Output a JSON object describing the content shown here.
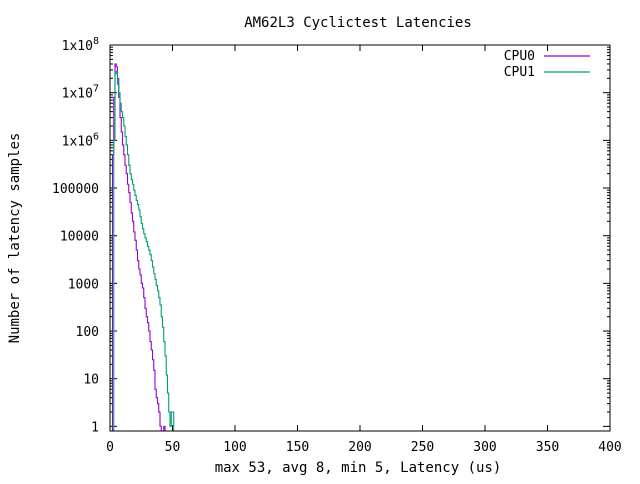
{
  "chart_data": {
    "type": "line",
    "title": "AM62L3 Cyclictest Latencies",
    "xlabel": "max 53, avg 8, min 5, Latency (us)",
    "ylabel": "Number of latency samples",
    "xlim": [
      0,
      400
    ],
    "ylim": [
      0.8,
      100000000
    ],
    "y_scale": "log",
    "grid": false,
    "legend_position": "top-right",
    "x_ticks": [
      "0",
      "50",
      "100",
      "150",
      "200",
      "250",
      "300",
      "350",
      "400"
    ],
    "y_ticks": [
      {
        "value": 1,
        "label": "1"
      },
      {
        "value": 10,
        "label": "10"
      },
      {
        "value": 100,
        "label": "100"
      },
      {
        "value": 1000,
        "label": "1000"
      },
      {
        "value": 10000,
        "label": "10000"
      },
      {
        "value": 100000,
        "label": "100000"
      },
      {
        "value": 1000000,
        "base": "1x10",
        "exp": "6"
      },
      {
        "value": 10000000,
        "base": "1x10",
        "exp": "7"
      },
      {
        "value": 100000000,
        "base": "1x10",
        "exp": "8"
      }
    ],
    "series": [
      {
        "name": "CPU0",
        "color": "#9400d3",
        "points": [
          [
            0,
            0.8
          ],
          [
            1,
            0.8
          ],
          [
            2,
            500000
          ],
          [
            3,
            8000000
          ],
          [
            4,
            40000000
          ],
          [
            5,
            35000000
          ],
          [
            6,
            20000000
          ],
          [
            7,
            8000000
          ],
          [
            8,
            3000000
          ],
          [
            9,
            1500000
          ],
          [
            10,
            800000
          ],
          [
            11,
            500000
          ],
          [
            12,
            300000
          ],
          [
            13,
            200000
          ],
          [
            14,
            120000
          ],
          [
            15,
            80000
          ],
          [
            16,
            50000
          ],
          [
            17,
            30000
          ],
          [
            18,
            20000
          ],
          [
            19,
            12000
          ],
          [
            20,
            8000
          ],
          [
            21,
            5000
          ],
          [
            22,
            3000
          ],
          [
            23,
            2000
          ],
          [
            24,
            1500
          ],
          [
            25,
            1000
          ],
          [
            26,
            800
          ],
          [
            27,
            500
          ],
          [
            28,
            300
          ],
          [
            29,
            200
          ],
          [
            30,
            150
          ],
          [
            31,
            100
          ],
          [
            32,
            60
          ],
          [
            33,
            40
          ],
          [
            34,
            25
          ],
          [
            35,
            15
          ],
          [
            36,
            6
          ],
          [
            37,
            4
          ],
          [
            38,
            3
          ],
          [
            39,
            2
          ],
          [
            40,
            1
          ],
          [
            41,
            0.8
          ],
          [
            42,
            0.8
          ],
          [
            43,
            1
          ],
          [
            44,
            0.8
          ],
          [
            53,
            0.8
          ]
        ]
      },
      {
        "name": "CPU1",
        "color": "#009e73",
        "points": [
          [
            0,
            0.8
          ],
          [
            2,
            0.8
          ],
          [
            3,
            1000000
          ],
          [
            4,
            25000000
          ],
          [
            5,
            28000000
          ],
          [
            6,
            15000000
          ],
          [
            7,
            10000000
          ],
          [
            8,
            6000000
          ],
          [
            9,
            4000000
          ],
          [
            10,
            3000000
          ],
          [
            11,
            2000000
          ],
          [
            12,
            1200000
          ],
          [
            13,
            800000
          ],
          [
            14,
            500000
          ],
          [
            15,
            300000
          ],
          [
            16,
            200000
          ],
          [
            17,
            150000
          ],
          [
            18,
            120000
          ],
          [
            19,
            90000
          ],
          [
            20,
            70000
          ],
          [
            21,
            55000
          ],
          [
            22,
            45000
          ],
          [
            23,
            35000
          ],
          [
            24,
            25000
          ],
          [
            25,
            18000
          ],
          [
            26,
            14000
          ],
          [
            27,
            11000
          ],
          [
            28,
            9000
          ],
          [
            29,
            7500
          ],
          [
            30,
            6000
          ],
          [
            31,
            5000
          ],
          [
            32,
            4000
          ],
          [
            33,
            3000
          ],
          [
            34,
            2200
          ],
          [
            35,
            1600
          ],
          [
            36,
            1200
          ],
          [
            37,
            900
          ],
          [
            38,
            700
          ],
          [
            39,
            500
          ],
          [
            40,
            350
          ],
          [
            41,
            200
          ],
          [
            42,
            120
          ],
          [
            43,
            60
          ],
          [
            44,
            30
          ],
          [
            45,
            12
          ],
          [
            46,
            5
          ],
          [
            47,
            2
          ],
          [
            48,
            1
          ],
          [
            49,
            2
          ],
          [
            50,
            2
          ],
          [
            51,
            0.8
          ],
          [
            53,
            0.8
          ]
        ]
      }
    ]
  }
}
